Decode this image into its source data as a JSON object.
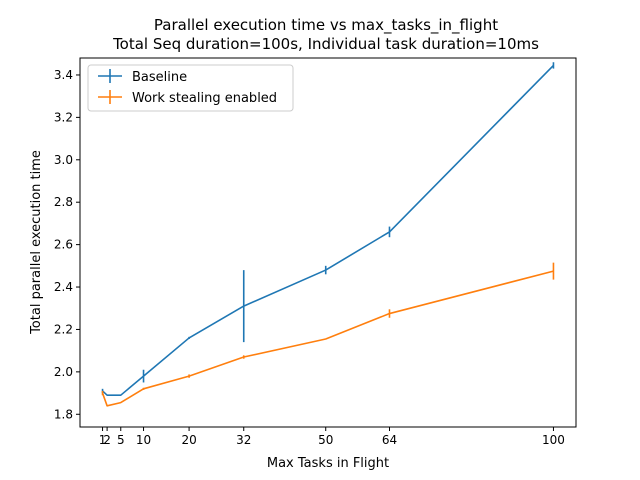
{
  "chart_data": {
    "type": "line",
    "title": "Parallel execution time vs max_tasks_in_flight",
    "subtitle": "Total Seq duration=100s, Individual task duration=10ms",
    "xlabel": "Max Tasks in Flight",
    "ylabel": "Total parallel execution time",
    "xlim": [
      -3.95,
      104.95
    ],
    "ylim": [
      1.74,
      3.48
    ],
    "xticks": [
      1,
      2,
      5,
      10,
      20,
      32,
      50,
      64,
      100
    ],
    "xtick_labels": [
      "1",
      "2",
      "5",
      "10",
      "20",
      "32",
      "50",
      "64",
      "100"
    ],
    "yticks": [
      1.8,
      2.0,
      2.2,
      2.4,
      2.6,
      2.8,
      3.0,
      3.2,
      3.4
    ],
    "ytick_labels": [
      "1.8",
      "2.0",
      "2.2",
      "2.4",
      "2.6",
      "2.8",
      "3.0",
      "3.2",
      "3.4"
    ],
    "legend_position": "top-left",
    "series": [
      {
        "name": "Baseline",
        "color": "#1f77b4",
        "x": [
          1,
          2,
          5,
          10,
          20,
          32,
          50,
          64,
          100
        ],
        "y": [
          1.91,
          1.89,
          1.89,
          1.98,
          2.16,
          2.31,
          2.48,
          2.66,
          3.445
        ],
        "err": [
          0.01,
          0.0,
          0.0,
          0.03,
          0.005,
          0.17,
          0.02,
          0.025,
          0.015
        ]
      },
      {
        "name": "Work stealing enabled",
        "color": "#ff7f0e",
        "x": [
          1,
          2,
          5,
          10,
          20,
          32,
          50,
          64,
          100
        ],
        "y": [
          1.9,
          1.84,
          1.855,
          1.92,
          1.98,
          2.07,
          2.155,
          2.275,
          2.475
        ],
        "err": [
          0.01,
          0.0,
          0.0,
          0.005,
          0.008,
          0.008,
          0.0,
          0.02,
          0.04
        ]
      }
    ]
  }
}
